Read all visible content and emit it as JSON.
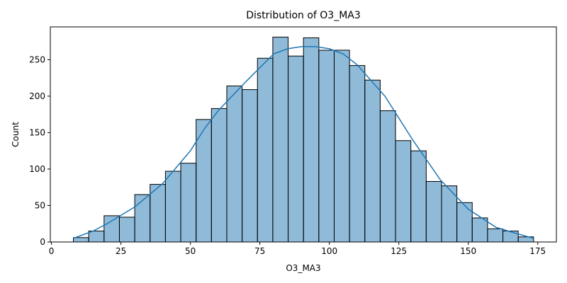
{
  "chart_data": {
    "type": "histogram",
    "title": "Distribution of O3_MA3",
    "xlabel": "O3_MA3",
    "ylabel": "Count",
    "bins": [
      7.9,
      13.42,
      18.94,
      24.46,
      29.98,
      35.5,
      41.02,
      46.54,
      52.06,
      57.58,
      63.1,
      68.62,
      74.14,
      79.66,
      85.18,
      90.7,
      96.22,
      101.74,
      107.26,
      112.78,
      118.3,
      123.82,
      129.34,
      134.86,
      140.38,
      145.9,
      151.42,
      156.94,
      162.46,
      167.98,
      173.5
    ],
    "values": [
      6,
      15,
      36,
      34,
      65,
      79,
      97,
      108,
      168,
      183,
      214,
      209,
      252,
      281,
      255,
      280,
      263,
      263,
      242,
      222,
      180,
      139,
      125,
      83,
      77,
      54,
      33,
      18,
      15,
      7
    ],
    "color": "#1f77b4",
    "edgecolor": "#000000",
    "kde": {
      "color": "#1f77b4",
      "x": [
        7.9,
        15,
        20,
        30,
        40,
        50,
        55,
        60,
        70,
        80,
        85,
        90,
        95,
        100,
        105,
        110,
        120,
        125,
        130,
        140,
        150,
        160,
        167,
        173.5
      ],
      "y": [
        5,
        15,
        25,
        48,
        80,
        125,
        155,
        180,
        220,
        258,
        265,
        268,
        268,
        265,
        258,
        243,
        200,
        170,
        140,
        85,
        45,
        20,
        12,
        5
      ]
    },
    "xlim": [
      -0.4,
      181.7
    ],
    "ylim": [
      0,
      295
    ],
    "xticks": [
      0,
      25,
      50,
      75,
      100,
      125,
      150,
      175
    ],
    "yticks": [
      0,
      50,
      100,
      150,
      200,
      250
    ]
  }
}
